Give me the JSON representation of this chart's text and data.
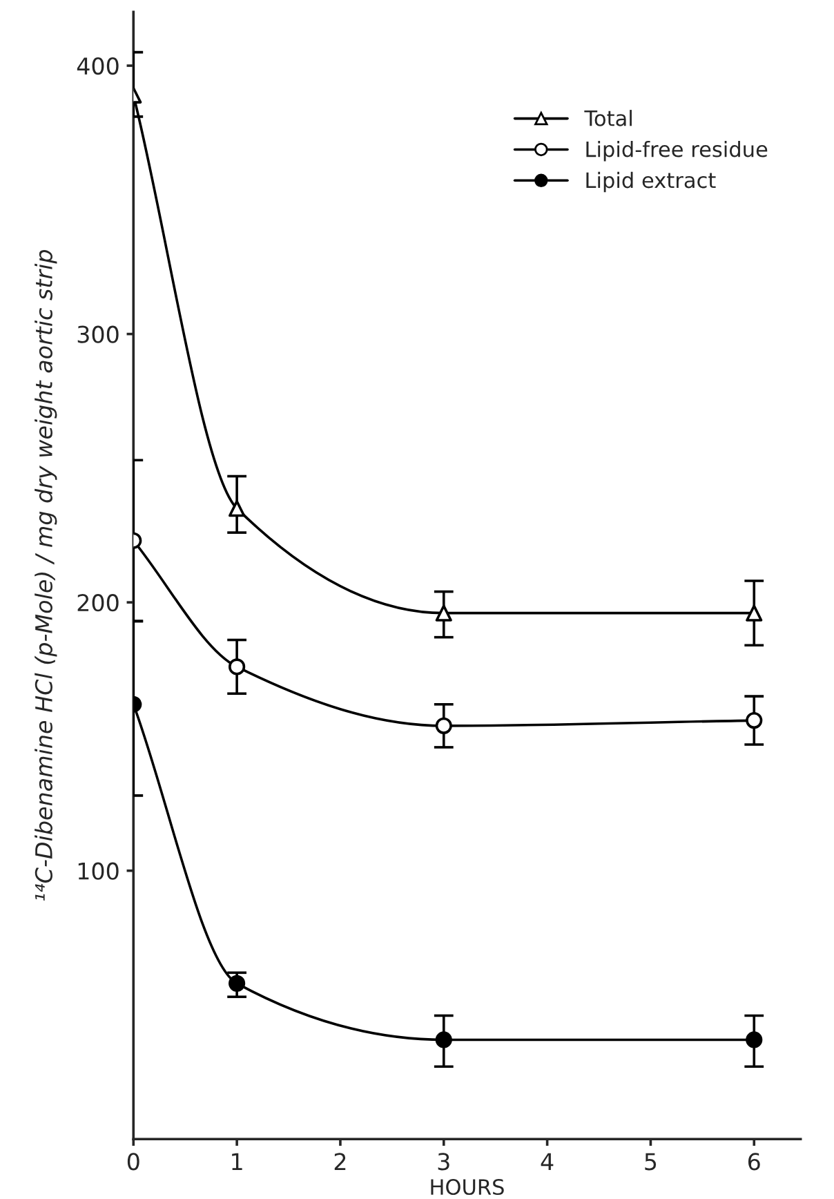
{
  "chart_data": {
    "type": "line",
    "xlabel": "HOURS",
    "ylabel": "¹⁴C-Dibenamine HCl (p-Mole) / mg dry weight aortic strip",
    "x": [
      0,
      1,
      3,
      6
    ],
    "xlim": [
      0,
      6.45
    ],
    "xticks": [
      0,
      1,
      2,
      3,
      4,
      5,
      6
    ],
    "ylim": [
      0,
      420
    ],
    "yticks": [
      100,
      200,
      300,
      400
    ],
    "grid": false,
    "legend": "top right",
    "line_style": "solid",
    "series": [
      {
        "name": "Total",
        "color": "#000000",
        "marker": "triangle",
        "colors": [
          "#ffffff",
          "#ffffff",
          "#ffffff",
          "#ffffff"
        ],
        "values": [
          389,
          235,
          196,
          196
        ],
        "errors": [
          [
            381,
            405
          ],
          [
            226,
            247
          ],
          [
            187,
            204
          ],
          [
            184,
            208
          ]
        ]
      },
      {
        "name": "Lipid-free residue",
        "color": "#000000",
        "marker": "circle",
        "colors": [
          "#ffffff",
          "#ffffff",
          "#ffffff",
          "#ffffff"
        ],
        "values": [
          223,
          176,
          154,
          156
        ],
        "errors": [
          [
            193,
            253
          ],
          [
            166,
            186
          ],
          [
            146,
            162
          ],
          [
            147,
            165
          ]
        ]
      },
      {
        "name": "Lipid extract",
        "color": "#000000",
        "marker": "circle",
        "colors": [
          "#000000",
          "#000000",
          "#000000",
          "#000000"
        ],
        "values": [
          162,
          58,
          37,
          37
        ],
        "errors": [
          [
            128,
            193
          ],
          [
            53,
            62
          ],
          [
            27,
            46
          ],
          [
            27,
            46
          ]
        ]
      }
    ]
  }
}
